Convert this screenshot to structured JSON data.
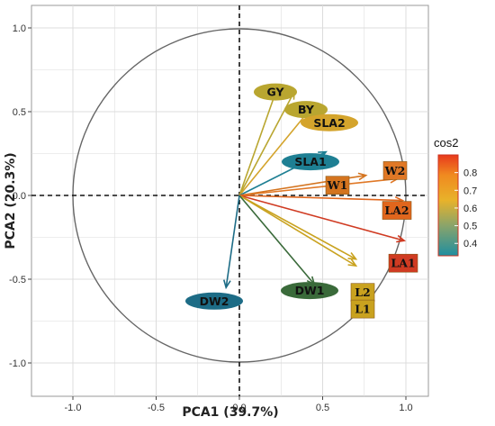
{
  "chart_data": {
    "type": "biplot",
    "xlabel": "PCA1 (39.7%)",
    "ylabel": "PCA2 (20.3%)",
    "xlim": [
      -1.25,
      1.15
    ],
    "ylim": [
      -1.2,
      1.15
    ],
    "xticks": [
      "-1.0",
      "-0.5",
      "0.0",
      "0.5",
      "1.0"
    ],
    "yticks": [
      "1.0",
      "0.5",
      "0.0",
      "-0.5",
      "-1.0"
    ],
    "xtick_values": [
      -1.0,
      -0.5,
      0.0,
      0.5,
      1.0
    ],
    "ytick_values": [
      1.0,
      0.5,
      0.0,
      -0.5,
      -1.0
    ],
    "grid": true,
    "correlation_circle": true,
    "legend": {
      "title": "cos2",
      "ticks": [
        "0.8",
        "0.7",
        "0.6",
        "0.5",
        "0.4"
      ],
      "tick_values": [
        0.8,
        0.7,
        0.6,
        0.5,
        0.4
      ],
      "range": [
        0.33,
        0.9
      ],
      "colors": [
        "#1f8ea0",
        "#8aa46a",
        "#e8b22a",
        "#f08a20",
        "#e83a1c"
      ],
      "placement": "right"
    },
    "variables": [
      {
        "name": "GY",
        "x": 0.23,
        "y": 0.65,
        "color": "#b9a630",
        "style": "oval"
      },
      {
        "name": "BY",
        "x": 0.33,
        "y": 0.62,
        "color": "#b9a630",
        "style": "oval"
      },
      {
        "name": "SLA2",
        "x": 0.43,
        "y": 0.52,
        "color": "#d4a42c",
        "style": "oval"
      },
      {
        "name": "SLA1",
        "x": 0.52,
        "y": 0.26,
        "color": "#1e7f93",
        "style": "oval"
      },
      {
        "name": "W1",
        "x": 0.76,
        "y": 0.12,
        "color": "#d4741f",
        "style": "box"
      },
      {
        "name": "W2",
        "x": 0.95,
        "y": 0.1,
        "color": "#e07826",
        "style": "box"
      },
      {
        "name": "LA2",
        "x": 0.98,
        "y": -0.03,
        "color": "#e0661d",
        "style": "box"
      },
      {
        "name": "LA1",
        "x": 0.99,
        "y": -0.27,
        "color": "#d03b22",
        "style": "box"
      },
      {
        "name": "L2",
        "x": 0.7,
        "y": -0.38,
        "color": "#c9a21f",
        "style": "box"
      },
      {
        "name": "L1",
        "x": 0.7,
        "y": -0.42,
        "color": "#c9a21f",
        "style": "box"
      },
      {
        "name": "DW1",
        "x": 0.45,
        "y": -0.53,
        "color": "#3a6a3a",
        "style": "oval"
      },
      {
        "name": "DW2",
        "x": -0.08,
        "y": -0.55,
        "color": "#1d6c86",
        "style": "oval"
      }
    ]
  }
}
